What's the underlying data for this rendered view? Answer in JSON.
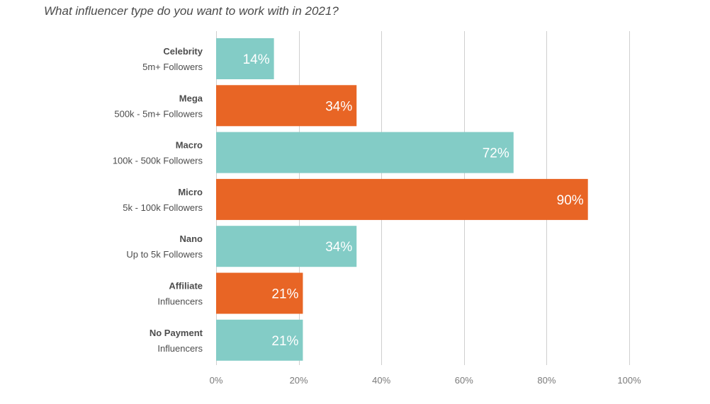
{
  "chart_data": {
    "type": "bar",
    "orientation": "horizontal",
    "title": "What influencer type do you want to work with in 2021?",
    "categories": [
      {
        "name": "Celebrity",
        "sub": "5m+ Followers",
        "value": 14,
        "label": "14%",
        "color": "#83ccc6"
      },
      {
        "name": "Mega",
        "sub": "500k - 5m+ Followers",
        "value": 34,
        "label": "34%",
        "color": "#e86525"
      },
      {
        "name": "Macro",
        "sub": "100k - 500k Followers",
        "value": 72,
        "label": "72%",
        "color": "#83ccc6"
      },
      {
        "name": "Micro",
        "sub": "5k - 100k Followers",
        "value": 90,
        "label": "90%",
        "color": "#e86525"
      },
      {
        "name": "Nano",
        "sub": "Up to 5k Followers",
        "value": 34,
        "label": "34%",
        "color": "#83ccc6"
      },
      {
        "name": "Affiliate",
        "sub": "Influencers",
        "value": 21,
        "label": "21%",
        "color": "#e86525"
      },
      {
        "name": "No Payment",
        "sub": "Influencers",
        "value": 21,
        "label": "21%",
        "color": "#83ccc6"
      }
    ],
    "xlim": [
      0,
      100
    ],
    "xticks": [
      0,
      20,
      40,
      60,
      80,
      100
    ],
    "xtick_labels": [
      "0%",
      "20%",
      "40%",
      "60%",
      "80%",
      "100%"
    ],
    "grid": true
  }
}
